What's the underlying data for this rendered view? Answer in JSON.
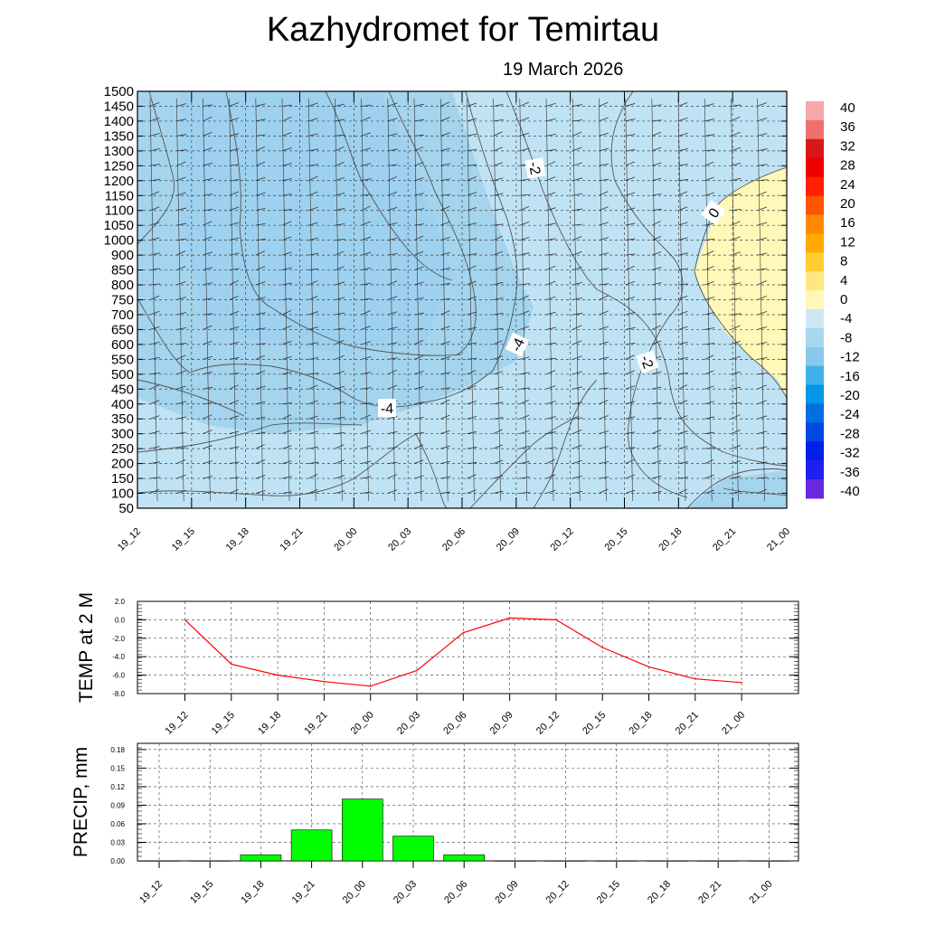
{
  "title": "Kazhydromet  for Temirtau",
  "subtitle": "19 March 2026",
  "colors": {
    "fill_cold": "#a8d8ee",
    "fill_warm": "#fff8b8",
    "temp_line": "#ff0000",
    "precip_bar": "#00ff00"
  },
  "chart_data": [
    {
      "type": "heatmap",
      "title": "Kazhydromet  for Temirtau",
      "xlabel": "",
      "ylabel": "",
      "x_ticks": [
        "19_12",
        "19_15",
        "19_18",
        "19_21",
        "20_00",
        "20_03",
        "20_06",
        "20_09",
        "20_12",
        "20_15",
        "20_18",
        "20_21",
        "21_00"
      ],
      "y_ticks": [
        1500,
        1450,
        1400,
        1350,
        1300,
        1250,
        1200,
        1150,
        1100,
        1050,
        1000,
        900,
        850,
        800,
        750,
        700,
        650,
        600,
        550,
        500,
        450,
        400,
        350,
        300,
        250,
        200,
        150,
        100,
        50
      ],
      "contour_labels": [
        "-2",
        "0",
        "-4",
        "-2",
        "-4"
      ],
      "colorbar": {
        "labels": [
          "40",
          "36",
          "32",
          "28",
          "24",
          "20",
          "16",
          "12",
          "8",
          "4",
          "0",
          "-4",
          "-8",
          "-12",
          "-16",
          "-20",
          "-24",
          "-28",
          "-32",
          "-36",
          "-40"
        ],
        "colors": [
          "#f7a8a8",
          "#f07070",
          "#d81818",
          "#ee0000",
          "#ff2000",
          "#ff5500",
          "#ff8800",
          "#ffaa00",
          "#ffcc33",
          "#ffe680",
          "#fff8b8",
          "#cde8f4",
          "#a8d8ee",
          "#88c8ec",
          "#40b0ea",
          "#0098e8",
          "#0070e0",
          "#0048e0",
          "#0020e8",
          "#2020ee",
          "#6a28e0"
        ]
      }
    },
    {
      "type": "line",
      "ylabel": "TEMP at 2 M",
      "categories": [
        "19_12",
        "19_15",
        "19_18",
        "19_21",
        "20_00",
        "20_03",
        "20_06",
        "20_09",
        "20_12",
        "20_15",
        "20_18",
        "20_21",
        "21_00"
      ],
      "values": [
        0.0,
        -4.8,
        -6.0,
        -6.7,
        -7.2,
        -5.5,
        -1.4,
        0.2,
        0.0,
        -3.0,
        -5.1,
        -6.4,
        -6.8
      ],
      "ylim": [
        -8,
        2
      ],
      "y_ticks": [
        "2.0",
        "0.0",
        "-2.0",
        "-4.0",
        "-6.0",
        "-8.0"
      ]
    },
    {
      "type": "bar",
      "ylabel": "PRECIP, mm",
      "categories": [
        "19_12",
        "19_15",
        "19_18",
        "19_21",
        "20_00",
        "20_03",
        "20_06",
        "20_09",
        "20_12",
        "20_15",
        "20_18",
        "20_21",
        "21_00"
      ],
      "values": [
        0,
        0,
        0.01,
        0.05,
        0.1,
        0.04,
        0.01,
        0,
        0,
        0,
        0,
        0,
        0
      ],
      "ylim": [
        0,
        0.19
      ],
      "y_ticks": [
        "0.18",
        "0.15",
        "0.12",
        "0.09",
        "0.06",
        "0.03",
        "0.00"
      ]
    }
  ]
}
